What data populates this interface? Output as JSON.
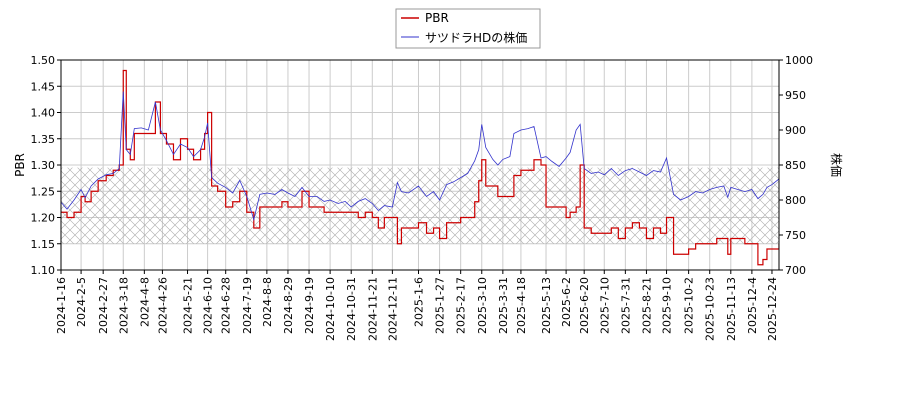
{
  "chart_data": {
    "type": "line",
    "legend_position": "top-center",
    "grid": true,
    "band": {
      "y_from": 1.15,
      "y_to": 1.295,
      "axis": "left",
      "pattern": "crosshatch"
    },
    "axes": {
      "left": {
        "label": "PBR",
        "ylim": [
          1.1,
          1.5
        ],
        "ticks": [
          "1.10",
          "1.15",
          "1.20",
          "1.25",
          "1.30",
          "1.35",
          "1.40",
          "1.45",
          "1.50"
        ]
      },
      "right": {
        "label": "株価",
        "ylim": [
          700,
          1000
        ],
        "ticks": [
          "700",
          "750",
          "800",
          "850",
          "900",
          "950",
          "1000"
        ]
      },
      "x": {
        "range": [
          "2024-01-16",
          "2025-12-31"
        ],
        "ticks": [
          "2024-1-16",
          "2024-2-5",
          "2024-2-27",
          "2024-3-18",
          "2024-4-8",
          "2024-4-26",
          "2024-5-21",
          "2024-6-10",
          "2024-6-28",
          "2024-7-19",
          "2024-8-8",
          "2024-8-29",
          "2024-9-19",
          "2024-10-10",
          "2024-10-31",
          "2024-11-21",
          "2024-12-11",
          "2025-1-6",
          "2025-1-27",
          "2025-2-17",
          "2025-3-10",
          "2025-3-31",
          "2025-4-18",
          "2025-5-13",
          "2025-6-2",
          "2025-6-20",
          "2025-7-10",
          "2025-7-31",
          "2025-8-21",
          "2025-9-10",
          "2025-10-2",
          "2025-10-23",
          "2025-11-13",
          "2025-12-4",
          "2025-12-24"
        ]
      }
    },
    "series": [
      {
        "name": "PBR",
        "axis": "left",
        "color": "#cc0000",
        "points": [
          [
            "2024-01-16",
            1.21
          ],
          [
            "2024-01-22",
            1.2
          ],
          [
            "2024-01-29",
            1.21
          ],
          [
            "2024-02-05",
            1.24
          ],
          [
            "2024-02-09",
            1.23
          ],
          [
            "2024-02-15",
            1.25
          ],
          [
            "2024-02-22",
            1.27
          ],
          [
            "2024-03-01",
            1.28
          ],
          [
            "2024-03-08",
            1.29
          ],
          [
            "2024-03-14",
            1.3
          ],
          [
            "2024-03-18",
            1.48
          ],
          [
            "2024-03-21",
            1.33
          ],
          [
            "2024-03-25",
            1.31
          ],
          [
            "2024-03-29",
            1.36
          ],
          [
            "2024-04-05",
            1.36
          ],
          [
            "2024-04-12",
            1.36
          ],
          [
            "2024-04-19",
            1.42
          ],
          [
            "2024-04-24",
            1.36
          ],
          [
            "2024-04-30",
            1.34
          ],
          [
            "2024-05-07",
            1.31
          ],
          [
            "2024-05-14",
            1.35
          ],
          [
            "2024-05-21",
            1.33
          ],
          [
            "2024-05-27",
            1.31
          ],
          [
            "2024-06-03",
            1.33
          ],
          [
            "2024-06-07",
            1.36
          ],
          [
            "2024-06-10",
            1.4
          ],
          [
            "2024-06-14",
            1.26
          ],
          [
            "2024-06-20",
            1.25
          ],
          [
            "2024-06-28",
            1.22
          ],
          [
            "2024-07-05",
            1.23
          ],
          [
            "2024-07-12",
            1.25
          ],
          [
            "2024-07-19",
            1.21
          ],
          [
            "2024-07-26",
            1.18
          ],
          [
            "2024-08-01",
            1.22
          ],
          [
            "2024-08-08",
            1.22
          ],
          [
            "2024-08-16",
            1.22
          ],
          [
            "2024-08-23",
            1.23
          ],
          [
            "2024-08-29",
            1.22
          ],
          [
            "2024-09-05",
            1.22
          ],
          [
            "2024-09-12",
            1.25
          ],
          [
            "2024-09-19",
            1.22
          ],
          [
            "2024-09-27",
            1.22
          ],
          [
            "2024-10-04",
            1.21
          ],
          [
            "2024-10-10",
            1.21
          ],
          [
            "2024-10-18",
            1.21
          ],
          [
            "2024-10-25",
            1.21
          ],
          [
            "2024-10-31",
            1.21
          ],
          [
            "2024-11-07",
            1.2
          ],
          [
            "2024-11-14",
            1.21
          ],
          [
            "2024-11-21",
            1.2
          ],
          [
            "2024-11-27",
            1.18
          ],
          [
            "2024-12-03",
            1.2
          ],
          [
            "2024-12-11",
            1.2
          ],
          [
            "2024-12-16",
            1.15
          ],
          [
            "2024-12-20",
            1.18
          ],
          [
            "2024-12-27",
            1.18
          ],
          [
            "2025-01-06",
            1.19
          ],
          [
            "2025-01-14",
            1.17
          ],
          [
            "2025-01-21",
            1.18
          ],
          [
            "2025-01-27",
            1.16
          ],
          [
            "2025-02-03",
            1.19
          ],
          [
            "2025-02-10",
            1.19
          ],
          [
            "2025-02-17",
            1.2
          ],
          [
            "2025-02-24",
            1.2
          ],
          [
            "2025-03-03",
            1.23
          ],
          [
            "2025-03-07",
            1.27
          ],
          [
            "2025-03-10",
            1.31
          ],
          [
            "2025-03-14",
            1.26
          ],
          [
            "2025-03-21",
            1.26
          ],
          [
            "2025-03-26",
            1.24
          ],
          [
            "2025-03-31",
            1.24
          ],
          [
            "2025-04-07",
            1.24
          ],
          [
            "2025-04-11",
            1.28
          ],
          [
            "2025-04-18",
            1.29
          ],
          [
            "2025-04-25",
            1.29
          ],
          [
            "2025-05-01",
            1.31
          ],
          [
            "2025-05-08",
            1.3
          ],
          [
            "2025-05-13",
            1.22
          ],
          [
            "2025-05-19",
            1.22
          ],
          [
            "2025-05-26",
            1.22
          ],
          [
            "2025-06-02",
            1.2
          ],
          [
            "2025-06-06",
            1.21
          ],
          [
            "2025-06-12",
            1.22
          ],
          [
            "2025-06-16",
            1.3
          ],
          [
            "2025-06-20",
            1.18
          ],
          [
            "2025-06-27",
            1.17
          ],
          [
            "2025-07-04",
            1.17
          ],
          [
            "2025-07-10",
            1.17
          ],
          [
            "2025-07-17",
            1.18
          ],
          [
            "2025-07-24",
            1.16
          ],
          [
            "2025-07-31",
            1.18
          ],
          [
            "2025-08-07",
            1.19
          ],
          [
            "2025-08-14",
            1.18
          ],
          [
            "2025-08-21",
            1.16
          ],
          [
            "2025-08-28",
            1.18
          ],
          [
            "2025-09-04",
            1.17
          ],
          [
            "2025-09-10",
            1.2
          ],
          [
            "2025-09-17",
            1.13
          ],
          [
            "2025-09-24",
            1.13
          ],
          [
            "2025-10-02",
            1.14
          ],
          [
            "2025-10-09",
            1.15
          ],
          [
            "2025-10-16",
            1.15
          ],
          [
            "2025-10-23",
            1.15
          ],
          [
            "2025-10-30",
            1.16
          ],
          [
            "2025-11-06",
            1.16
          ],
          [
            "2025-11-10",
            1.13
          ],
          [
            "2025-11-13",
            1.16
          ],
          [
            "2025-11-20",
            1.16
          ],
          [
            "2025-11-27",
            1.15
          ],
          [
            "2025-12-04",
            1.15
          ],
          [
            "2025-12-10",
            1.11
          ],
          [
            "2025-12-15",
            1.12
          ],
          [
            "2025-12-19",
            1.14
          ],
          [
            "2025-12-24",
            1.14
          ],
          [
            "2025-12-31",
            1.15
          ]
        ]
      },
      {
        "name": "サツドラHDの株価",
        "axis": "right",
        "color": "#3333cc",
        "points": [
          [
            "2024-01-16",
            797
          ],
          [
            "2024-01-22",
            787
          ],
          [
            "2024-01-29",
            800
          ],
          [
            "2024-02-05",
            815
          ],
          [
            "2024-02-09",
            803
          ],
          [
            "2024-02-15",
            820
          ],
          [
            "2024-02-22",
            830
          ],
          [
            "2024-03-01",
            836
          ],
          [
            "2024-03-08",
            838
          ],
          [
            "2024-03-14",
            845
          ],
          [
            "2024-03-18",
            955
          ],
          [
            "2024-03-21",
            872
          ],
          [
            "2024-03-25",
            865
          ],
          [
            "2024-03-29",
            902
          ],
          [
            "2024-04-05",
            903
          ],
          [
            "2024-04-12",
            900
          ],
          [
            "2024-04-19",
            940
          ],
          [
            "2024-04-24",
            900
          ],
          [
            "2024-04-30",
            885
          ],
          [
            "2024-05-07",
            865
          ],
          [
            "2024-05-14",
            880
          ],
          [
            "2024-05-21",
            875
          ],
          [
            "2024-05-27",
            862
          ],
          [
            "2024-06-03",
            872
          ],
          [
            "2024-06-07",
            890
          ],
          [
            "2024-06-10",
            910
          ],
          [
            "2024-06-14",
            832
          ],
          [
            "2024-06-20",
            824
          ],
          [
            "2024-06-28",
            818
          ],
          [
            "2024-07-05",
            810
          ],
          [
            "2024-07-12",
            828
          ],
          [
            "2024-07-19",
            805
          ],
          [
            "2024-07-26",
            772
          ],
          [
            "2024-08-01",
            808
          ],
          [
            "2024-08-08",
            810
          ],
          [
            "2024-08-16",
            808
          ],
          [
            "2024-08-23",
            815
          ],
          [
            "2024-08-29",
            810
          ],
          [
            "2024-09-05",
            805
          ],
          [
            "2024-09-12",
            818
          ],
          [
            "2024-09-19",
            805
          ],
          [
            "2024-09-27",
            805
          ],
          [
            "2024-10-04",
            798
          ],
          [
            "2024-10-10",
            800
          ],
          [
            "2024-10-18",
            795
          ],
          [
            "2024-10-25",
            798
          ],
          [
            "2024-10-31",
            790
          ],
          [
            "2024-11-07",
            798
          ],
          [
            "2024-11-14",
            802
          ],
          [
            "2024-11-21",
            795
          ],
          [
            "2024-11-27",
            785
          ],
          [
            "2024-12-03",
            792
          ],
          [
            "2024-12-11",
            790
          ],
          [
            "2024-12-16",
            825
          ],
          [
            "2024-12-20",
            812
          ],
          [
            "2024-12-27",
            810
          ],
          [
            "2025-01-06",
            820
          ],
          [
            "2025-01-14",
            805
          ],
          [
            "2025-01-21",
            812
          ],
          [
            "2025-01-27",
            800
          ],
          [
            "2025-02-03",
            822
          ],
          [
            "2025-02-10",
            826
          ],
          [
            "2025-02-17",
            832
          ],
          [
            "2025-02-24",
            838
          ],
          [
            "2025-03-03",
            856
          ],
          [
            "2025-03-07",
            872
          ],
          [
            "2025-03-10",
            908
          ],
          [
            "2025-03-14",
            875
          ],
          [
            "2025-03-21",
            858
          ],
          [
            "2025-03-26",
            850
          ],
          [
            "2025-03-31",
            858
          ],
          [
            "2025-04-07",
            862
          ],
          [
            "2025-04-11",
            895
          ],
          [
            "2025-04-18",
            900
          ],
          [
            "2025-04-25",
            902
          ],
          [
            "2025-05-01",
            905
          ],
          [
            "2025-05-08",
            860
          ],
          [
            "2025-05-13",
            862
          ],
          [
            "2025-05-19",
            855
          ],
          [
            "2025-05-26",
            848
          ],
          [
            "2025-06-02",
            860
          ],
          [
            "2025-06-06",
            868
          ],
          [
            "2025-06-12",
            900
          ],
          [
            "2025-06-16",
            908
          ],
          [
            "2025-06-20",
            845
          ],
          [
            "2025-06-27",
            838
          ],
          [
            "2025-07-04",
            840
          ],
          [
            "2025-07-10",
            836
          ],
          [
            "2025-07-17",
            845
          ],
          [
            "2025-07-24",
            835
          ],
          [
            "2025-07-31",
            842
          ],
          [
            "2025-08-07",
            845
          ],
          [
            "2025-08-14",
            840
          ],
          [
            "2025-08-21",
            835
          ],
          [
            "2025-08-28",
            842
          ],
          [
            "2025-09-04",
            840
          ],
          [
            "2025-09-10",
            860
          ],
          [
            "2025-09-17",
            808
          ],
          [
            "2025-09-24",
            800
          ],
          [
            "2025-10-02",
            805
          ],
          [
            "2025-10-09",
            812
          ],
          [
            "2025-10-16",
            810
          ],
          [
            "2025-10-23",
            815
          ],
          [
            "2025-10-30",
            818
          ],
          [
            "2025-11-06",
            820
          ],
          [
            "2025-11-10",
            804
          ],
          [
            "2025-11-13",
            818
          ],
          [
            "2025-11-20",
            815
          ],
          [
            "2025-11-27",
            812
          ],
          [
            "2025-12-04",
            815
          ],
          [
            "2025-12-10",
            802
          ],
          [
            "2025-12-15",
            808
          ],
          [
            "2025-12-19",
            818
          ],
          [
            "2025-12-24",
            822
          ],
          [
            "2025-12-31",
            830
          ]
        ]
      }
    ]
  }
}
